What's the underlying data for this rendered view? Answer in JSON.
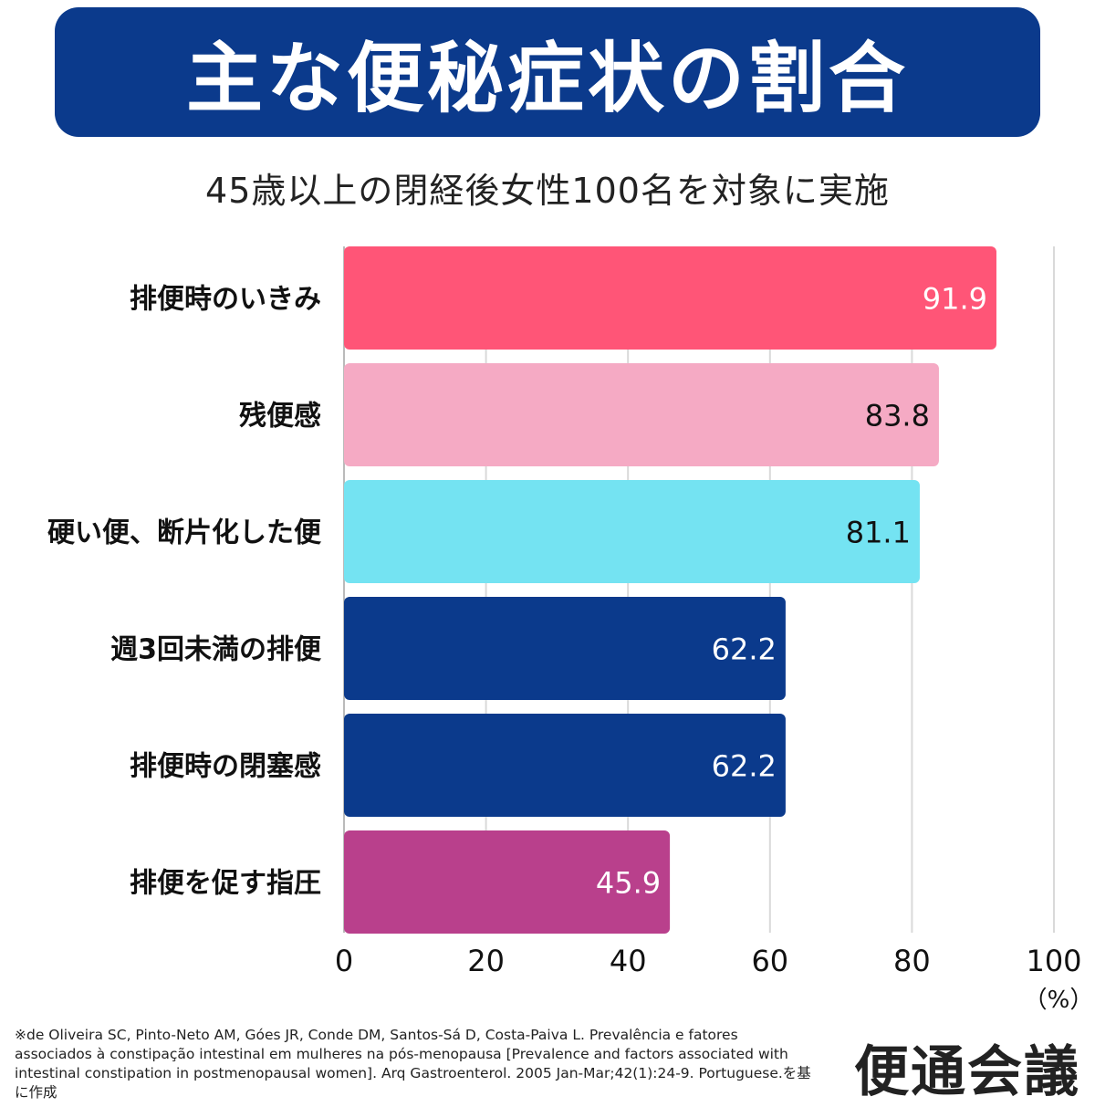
{
  "title": "主な便秘症状の割合",
  "subtitle": "45歳以上の閉経後女性100名を対象に実施",
  "chart_data": {
    "type": "bar",
    "orientation": "horizontal",
    "categories": [
      "排便時のいきみ",
      "残便感",
      "硬い便、断片化した便",
      "週3回未満の排便",
      "排便時の閉塞感",
      "排便を促す指圧"
    ],
    "values": [
      91.9,
      83.8,
      81.1,
      62.2,
      62.2,
      45.9
    ],
    "value_labels": [
      "91.9",
      "83.8",
      "81.1",
      "62.2",
      "62.2",
      "45.9"
    ],
    "bar_colors": [
      "#ff5577",
      "#f5aac4",
      "#74e3f2",
      "#0b3a8c",
      "#0b3a8c",
      "#b9408c"
    ],
    "label_colors": [
      "#ffffff",
      "#111111",
      "#111111",
      "#ffffff",
      "#ffffff",
      "#ffffff"
    ],
    "xlim": [
      0,
      100
    ],
    "xticks": [
      0,
      20,
      40,
      60,
      80,
      100
    ],
    "xtick_labels": [
      "0",
      "20",
      "40",
      "60",
      "80",
      "100"
    ],
    "unit": "（%）",
    "grid": true
  },
  "footnote": "※de Oliveira SC, Pinto-Neto AM, Góes JR, Conde DM, Santos-Sá D, Costa-Paiva L. Prevalência e fatores associados à constipação intestinal em mulheres na pós-menopausa [Prevalence and factors associated with intestinal constipation in postmenopausal women]. Arq Gastroenterol. 2005 Jan-Mar;42(1):24-9. Portuguese.を基に作成",
  "brand": "便通会議",
  "colors": {
    "title_bg": "#0b3a8c",
    "grid": "#d9d9d9",
    "axis": "#bbbbbb"
  }
}
